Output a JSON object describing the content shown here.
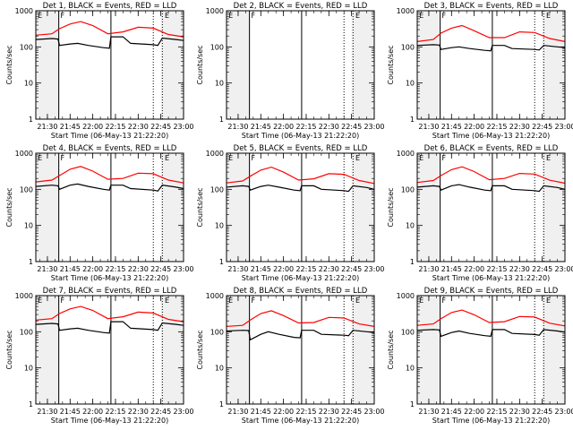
{
  "chart_data": {
    "type": "line",
    "layout": "3x3 grid of small-multiple panels",
    "x_axis": {
      "label": "Start Time (06-May-13 21:22:20)",
      "range": [
        "21:22:20",
        "23:00"
      ],
      "tick_labels": [
        "21:30",
        "21:45",
        "22:00",
        "22:15",
        "22:30",
        "22:45",
        "23:00"
      ]
    },
    "y_axis": {
      "label": "Counts/sec",
      "scale": "log",
      "range": [
        1,
        1000
      ],
      "tick_labels": [
        "1",
        "10",
        "100",
        "1000"
      ]
    },
    "series_colors": {
      "events": "#000000",
      "lld": "#ff0000"
    },
    "background": "#ffffff",
    "shaded_interval_color": "#f0f0f0",
    "vertical_markers": {
      "solid": [
        "21:37:30",
        "22:12"
      ],
      "dotted": [
        "22:40",
        "22:46"
      ],
      "flag_labels": [
        "E",
        "F",
        "E"
      ],
      "flag_times": [
        "21:23",
        "21:38",
        "22:47"
      ]
    },
    "panels": [
      {
        "title": "Det 1, BLACK = Events, RED = LLD",
        "shaded": [
          [
            "21:22:20",
            "21:38"
          ],
          [
            "22:45",
            "23:00"
          ]
        ],
        "series": [
          {
            "name": "Events",
            "x": [
              "21:22:20",
              "21:33",
              "21:37",
              "21:38",
              "21:45",
              "21:50",
              "21:57",
              "22:07",
              "22:11",
              "22:12",
              "22:20",
              "22:25",
              "22:40",
              "22:43",
              "22:46",
              "22:55",
              "23:00"
            ],
            "y": [
              160,
              170,
              165,
              110,
              120,
              125,
              110,
              95,
              92,
              190,
              190,
              125,
              115,
              110,
              175,
              160,
              150
            ]
          },
          {
            "name": "LLD",
            "x": [
              "21:22:20",
              "21:33",
              "21:38",
              "21:45",
              "21:52",
              "22:00",
              "22:10",
              "22:20",
              "22:30",
              "22:40",
              "22:50",
              "23:00"
            ],
            "y": [
              210,
              230,
              320,
              430,
              500,
              390,
              230,
              260,
              350,
              330,
              220,
              190
            ]
          }
        ]
      },
      {
        "title": "Det 2, BLACK = Events, RED = LLD",
        "shaded": [
          [
            "21:22:20",
            "21:38"
          ],
          [
            "22:45",
            "23:00"
          ]
        ],
        "series": []
      },
      {
        "title": "Det 3, BLACK = Events, RED = LLD",
        "shaded": [
          [
            "21:22:20",
            "21:38"
          ],
          [
            "22:45",
            "23:00"
          ]
        ],
        "series": [
          {
            "name": "Events",
            "x": [
              "21:22:20",
              "21:33",
              "21:37",
              "21:38",
              "21:45",
              "21:50",
              "21:57",
              "22:07",
              "22:11",
              "22:12",
              "22:20",
              "22:25",
              "22:40",
              "22:43",
              "22:46",
              "22:55",
              "23:00"
            ],
            "y": [
              110,
              115,
              112,
              85,
              95,
              100,
              90,
              80,
              78,
              110,
              110,
              90,
              85,
              82,
              110,
              100,
              95
            ]
          },
          {
            "name": "LLD",
            "x": [
              "21:22:20",
              "21:33",
              "21:38",
              "21:45",
              "21:52",
              "22:00",
              "22:10",
              "22:20",
              "22:30",
              "22:40",
              "22:50",
              "23:00"
            ],
            "y": [
              140,
              160,
              240,
              330,
              390,
              280,
              180,
              180,
              260,
              250,
              170,
              140
            ]
          }
        ]
      },
      {
        "title": "Det 4, BLACK = Events, RED = LLD",
        "shaded": [
          [
            "21:22:20",
            "21:38"
          ],
          [
            "22:45",
            "23:00"
          ]
        ],
        "series": [
          {
            "name": "Events",
            "x": [
              "21:22:20",
              "21:33",
              "21:37",
              "21:38",
              "21:45",
              "21:50",
              "21:57",
              "22:07",
              "22:11",
              "22:12",
              "22:20",
              "22:25",
              "22:40",
              "22:43",
              "22:46",
              "22:55",
              "23:00"
            ],
            "y": [
              120,
              130,
              125,
              100,
              130,
              140,
              120,
              100,
              95,
              130,
              130,
              105,
              95,
              90,
              130,
              115,
              105
            ]
          },
          {
            "name": "LLD",
            "x": [
              "21:22:20",
              "21:33",
              "21:38",
              "21:45",
              "21:52",
              "22:00",
              "22:10",
              "22:20",
              "22:30",
              "22:40",
              "22:50",
              "23:00"
            ],
            "y": [
              160,
              180,
              240,
              360,
              430,
              320,
              190,
              200,
              280,
              270,
              180,
              150
            ]
          }
        ]
      },
      {
        "title": "Det 5, BLACK = Events, RED = LLD",
        "shaded": [
          [
            "21:22:20",
            "21:38"
          ],
          [
            "22:45",
            "23:00"
          ]
        ],
        "series": [
          {
            "name": "Events",
            "x": [
              "21:22:20",
              "21:33",
              "21:37",
              "21:38",
              "21:45",
              "21:50",
              "21:57",
              "22:07",
              "22:11",
              "22:12",
              "22:20",
              "22:25",
              "22:40",
              "22:43",
              "22:46",
              "22:55",
              "23:00"
            ],
            "y": [
              115,
              125,
              120,
              95,
              120,
              130,
              115,
              95,
              92,
              125,
              125,
              100,
              92,
              88,
              125,
              112,
              100
            ]
          },
          {
            "name": "LLD",
            "x": [
              "21:22:20",
              "21:33",
              "21:38",
              "21:45",
              "21:52",
              "22:00",
              "22:10",
              "22:20",
              "22:30",
              "22:40",
              "22:50",
              "23:00"
            ],
            "y": [
              150,
              170,
              230,
              340,
              410,
              300,
              180,
              195,
              270,
              260,
              175,
              145
            ]
          }
        ]
      },
      {
        "title": "Det 6, BLACK = Events, RED = LLD",
        "shaded": [
          [
            "21:22:20",
            "21:38"
          ],
          [
            "22:45",
            "23:00"
          ]
        ],
        "series": [
          {
            "name": "Events",
            "x": [
              "21:22:20",
              "21:33",
              "21:37",
              "21:38",
              "21:45",
              "21:50",
              "21:57",
              "22:07",
              "22:11",
              "22:12",
              "22:20",
              "22:25",
              "22:40",
              "22:43",
              "22:46",
              "22:55",
              "23:00"
            ],
            "y": [
              115,
              125,
              120,
              95,
              125,
              135,
              115,
              95,
              92,
              125,
              125,
              100,
              92,
              88,
              125,
              112,
              100
            ]
          },
          {
            "name": "LLD",
            "x": [
              "21:22:20",
              "21:33",
              "21:38",
              "21:45",
              "21:52",
              "22:00",
              "22:10",
              "22:20",
              "22:30",
              "22:40",
              "22:50",
              "23:00"
            ],
            "y": [
              155,
              175,
              240,
              350,
              420,
              310,
              185,
              200,
              275,
              265,
              178,
              148
            ]
          }
        ]
      },
      {
        "title": "Det 7, BLACK = Events, RED = LLD",
        "shaded": [
          [
            "21:22:20",
            "21:38"
          ],
          [
            "22:45",
            "23:00"
          ]
        ],
        "series": [
          {
            "name": "Events",
            "x": [
              "21:22:20",
              "21:33",
              "21:37",
              "21:38",
              "21:45",
              "21:50",
              "21:57",
              "22:07",
              "22:11",
              "22:12",
              "22:20",
              "22:25",
              "22:40",
              "22:43",
              "22:46",
              "22:55",
              "23:00"
            ],
            "y": [
              160,
              170,
              165,
              110,
              120,
              125,
              110,
              95,
              92,
              190,
              190,
              125,
              115,
              110,
              175,
              160,
              150
            ]
          },
          {
            "name": "LLD",
            "x": [
              "21:22:20",
              "21:33",
              "21:38",
              "21:45",
              "21:52",
              "22:00",
              "22:10",
              "22:20",
              "22:30",
              "22:40",
              "22:50",
              "23:00"
            ],
            "y": [
              210,
              230,
              320,
              430,
              500,
              390,
              230,
              260,
              350,
              330,
              220,
              190
            ]
          }
        ]
      },
      {
        "title": "Det 8, BLACK = Events, RED = LLD",
        "shaded": [
          [
            "21:22:20",
            "21:38"
          ],
          [
            "22:45",
            "23:00"
          ]
        ],
        "series": [
          {
            "name": "Events",
            "x": [
              "21:22:20",
              "21:33",
              "21:37",
              "21:38",
              "21:45",
              "21:50",
              "21:57",
              "22:07",
              "22:11",
              "22:12",
              "22:20",
              "22:25",
              "22:40",
              "22:43",
              "22:46",
              "22:55",
              "23:00"
            ],
            "y": [
              105,
              110,
              108,
              60,
              85,
              100,
              85,
              70,
              68,
              110,
              110,
              85,
              80,
              78,
              110,
              100,
              95
            ]
          },
          {
            "name": "LLD",
            "x": [
              "21:22:20",
              "21:33",
              "21:38",
              "21:45",
              "21:52",
              "22:00",
              "22:10",
              "22:20",
              "22:30",
              "22:40",
              "22:50",
              "23:00"
            ],
            "y": [
              140,
              150,
              210,
              320,
              380,
              280,
              175,
              180,
              250,
              240,
              165,
              140
            ]
          }
        ]
      },
      {
        "title": "Det 9, BLACK = Events, RED = LLD",
        "shaded": [
          [
            "21:22:20",
            "21:38"
          ],
          [
            "22:45",
            "23:00"
          ]
        ],
        "series": [
          {
            "name": "Events",
            "x": [
              "21:22:20",
              "21:33",
              "21:37",
              "21:38",
              "21:45",
              "21:50",
              "21:57",
              "22:07",
              "22:11",
              "22:12",
              "22:20",
              "22:25",
              "22:40",
              "22:43",
              "22:46",
              "22:55",
              "23:00"
            ],
            "y": [
              110,
              115,
              112,
              75,
              95,
              105,
              90,
              78,
              75,
              115,
              115,
              90,
              84,
              80,
              115,
              105,
              98
            ]
          },
          {
            "name": "LLD",
            "x": [
              "21:22:20",
              "21:33",
              "21:38",
              "21:45",
              "21:52",
              "22:00",
              "22:10",
              "22:20",
              "22:30",
              "22:40",
              "22:50",
              "23:00"
            ],
            "y": [
              150,
              165,
              230,
              340,
              400,
              295,
              180,
              190,
              265,
              255,
              172,
              145
            ]
          }
        ]
      }
    ]
  }
}
